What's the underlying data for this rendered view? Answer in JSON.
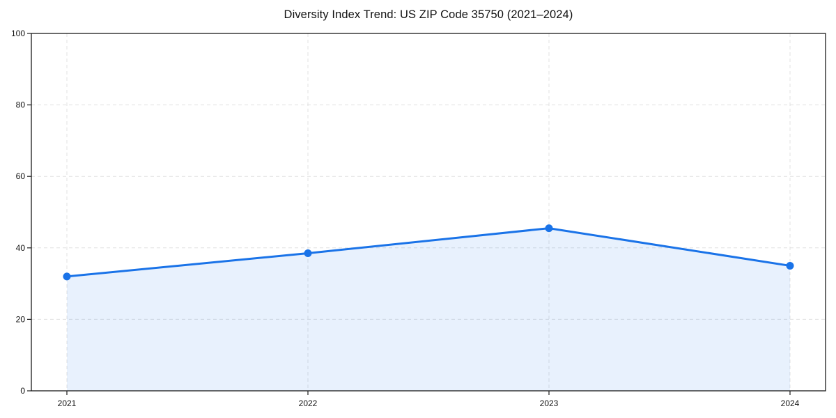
{
  "chart_data": {
    "type": "area",
    "title": "Diversity Index Trend: US ZIP Code 35750 (2021–2024)",
    "categories": [
      "2021",
      "2022",
      "2023",
      "2024"
    ],
    "series": [
      {
        "name": "Diversity Index",
        "values": [
          32,
          38.5,
          45.5,
          35
        ]
      }
    ],
    "xlabel": "",
    "ylabel": "",
    "ylim": [
      0,
      100
    ],
    "yticks": [
      0,
      20,
      40,
      60,
      80,
      100
    ],
    "grid": true,
    "grid_style": "dashed",
    "legend": false,
    "marker": "circle",
    "colors": {
      "line": "#1a73e8",
      "marker": "#1a73e8",
      "fill": "rgba(26,115,232,0.10)",
      "grid": "#e0e0e0",
      "axis": "#1a1a1a",
      "text": "#111111"
    }
  }
}
